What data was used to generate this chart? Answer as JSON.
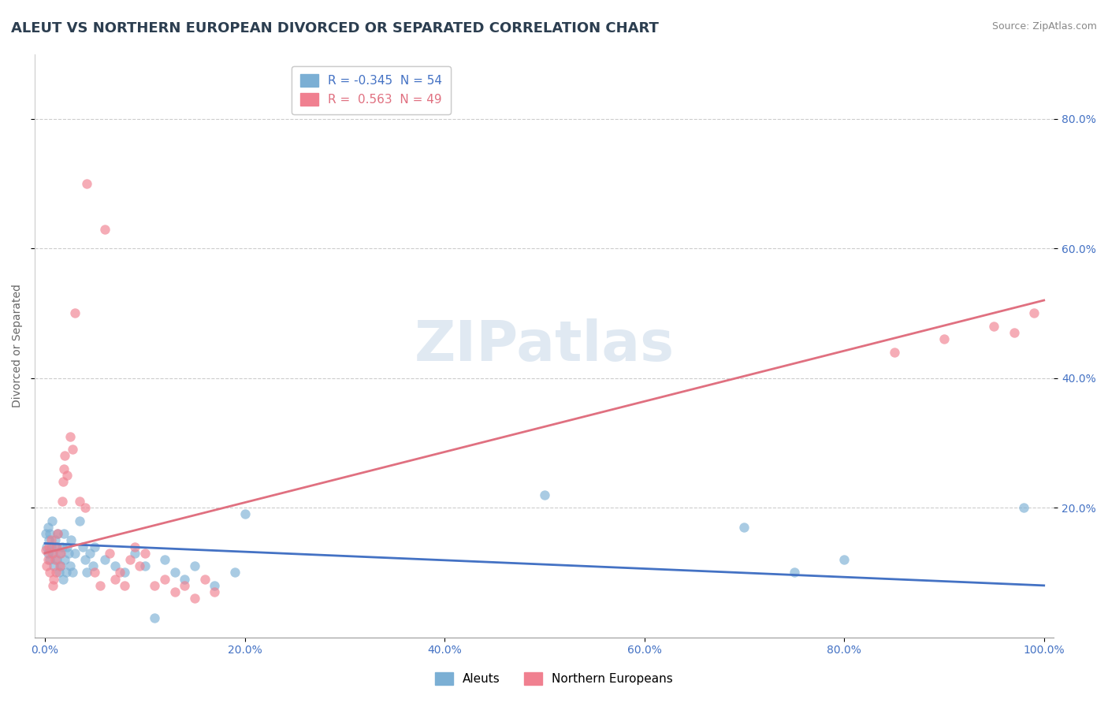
{
  "title": "ALEUT VS NORTHERN EUROPEAN DIVORCED OR SEPARATED CORRELATION CHART",
  "source": "Source: ZipAtlas.com",
  "ylabel": "Divorced or Separated",
  "watermark": "ZIPatlas",
  "legend_entries": [
    {
      "label": "R = -0.345  N = 54",
      "color": "#aac4e0"
    },
    {
      "label": "R =  0.563  N = 49",
      "color": "#f0a0b0"
    }
  ],
  "legend_bottom": [
    {
      "label": "Aleuts",
      "color": "#aac4e0"
    },
    {
      "label": "Northern Europeans",
      "color": "#f0a0b0"
    }
  ],
  "aleuts_scatter": [
    [
      0.001,
      0.16
    ],
    [
      0.002,
      0.14
    ],
    [
      0.003,
      0.17
    ],
    [
      0.003,
      0.13
    ],
    [
      0.004,
      0.15
    ],
    [
      0.005,
      0.16
    ],
    [
      0.005,
      0.12
    ],
    [
      0.006,
      0.14
    ],
    [
      0.007,
      0.18
    ],
    [
      0.008,
      0.13
    ],
    [
      0.009,
      0.11
    ],
    [
      0.01,
      0.15
    ],
    [
      0.011,
      0.14
    ],
    [
      0.012,
      0.12
    ],
    [
      0.013,
      0.16
    ],
    [
      0.014,
      0.1
    ],
    [
      0.015,
      0.13
    ],
    [
      0.016,
      0.11
    ],
    [
      0.017,
      0.14
    ],
    [
      0.018,
      0.09
    ],
    [
      0.019,
      0.16
    ],
    [
      0.02,
      0.12
    ],
    [
      0.021,
      0.1
    ],
    [
      0.022,
      0.14
    ],
    [
      0.024,
      0.13
    ],
    [
      0.025,
      0.11
    ],
    [
      0.026,
      0.15
    ],
    [
      0.028,
      0.1
    ],
    [
      0.03,
      0.13
    ],
    [
      0.035,
      0.18
    ],
    [
      0.038,
      0.14
    ],
    [
      0.04,
      0.12
    ],
    [
      0.042,
      0.1
    ],
    [
      0.045,
      0.13
    ],
    [
      0.048,
      0.11
    ],
    [
      0.05,
      0.14
    ],
    [
      0.06,
      0.12
    ],
    [
      0.07,
      0.11
    ],
    [
      0.08,
      0.1
    ],
    [
      0.09,
      0.13
    ],
    [
      0.1,
      0.11
    ],
    [
      0.11,
      0.03
    ],
    [
      0.12,
      0.12
    ],
    [
      0.13,
      0.1
    ],
    [
      0.14,
      0.09
    ],
    [
      0.15,
      0.11
    ],
    [
      0.17,
      0.08
    ],
    [
      0.19,
      0.1
    ],
    [
      0.2,
      0.19
    ],
    [
      0.5,
      0.22
    ],
    [
      0.7,
      0.17
    ],
    [
      0.75,
      0.1
    ],
    [
      0.8,
      0.12
    ],
    [
      0.98,
      0.2
    ]
  ],
  "northern_europeans_scatter": [
    [
      0.001,
      0.135
    ],
    [
      0.002,
      0.11
    ],
    [
      0.003,
      0.12
    ],
    [
      0.004,
      0.14
    ],
    [
      0.005,
      0.1
    ],
    [
      0.006,
      0.15
    ],
    [
      0.007,
      0.13
    ],
    [
      0.008,
      0.08
    ],
    [
      0.009,
      0.09
    ],
    [
      0.01,
      0.12
    ],
    [
      0.011,
      0.1
    ],
    [
      0.012,
      0.14
    ],
    [
      0.013,
      0.16
    ],
    [
      0.015,
      0.11
    ],
    [
      0.016,
      0.13
    ],
    [
      0.017,
      0.21
    ],
    [
      0.018,
      0.24
    ],
    [
      0.019,
      0.26
    ],
    [
      0.02,
      0.28
    ],
    [
      0.022,
      0.25
    ],
    [
      0.025,
      0.31
    ],
    [
      0.028,
      0.29
    ],
    [
      0.03,
      0.5
    ],
    [
      0.035,
      0.21
    ],
    [
      0.04,
      0.2
    ],
    [
      0.042,
      0.7
    ],
    [
      0.05,
      0.1
    ],
    [
      0.055,
      0.08
    ],
    [
      0.06,
      0.63
    ],
    [
      0.065,
      0.13
    ],
    [
      0.07,
      0.09
    ],
    [
      0.075,
      0.1
    ],
    [
      0.08,
      0.08
    ],
    [
      0.085,
      0.12
    ],
    [
      0.09,
      0.14
    ],
    [
      0.095,
      0.11
    ],
    [
      0.1,
      0.13
    ],
    [
      0.11,
      0.08
    ],
    [
      0.12,
      0.09
    ],
    [
      0.13,
      0.07
    ],
    [
      0.14,
      0.08
    ],
    [
      0.15,
      0.06
    ],
    [
      0.16,
      0.09
    ],
    [
      0.17,
      0.07
    ],
    [
      0.85,
      0.44
    ],
    [
      0.9,
      0.46
    ],
    [
      0.95,
      0.48
    ],
    [
      0.97,
      0.47
    ],
    [
      0.99,
      0.5
    ]
  ],
  "aleut_line": {
    "x0": 0.0,
    "y0": 0.145,
    "x1": 1.0,
    "y1": 0.08
  },
  "northern_line": {
    "x0": 0.0,
    "y0": 0.13,
    "x1": 1.0,
    "y1": 0.52
  },
  "xlim": [
    -0.01,
    1.01
  ],
  "ylim": [
    0.0,
    0.9
  ],
  "xticks": [
    0.0,
    0.2,
    0.4,
    0.6,
    0.8,
    1.0
  ],
  "yticks": [
    0.2,
    0.4,
    0.6,
    0.8
  ],
  "xticklabels": [
    "0.0%",
    "20.0%",
    "40.0%",
    "60.0%",
    "80.0%",
    "100.0%"
  ],
  "yticklabels_right": [
    "20.0%",
    "40.0%",
    "60.0%",
    "80.0%"
  ],
  "aleut_color": "#7bafd4",
  "northern_color": "#f08090",
  "aleut_line_color": "#4472c4",
  "northern_line_color": "#e07080",
  "grid_color": "#cccccc",
  "bg_color": "#ffffff",
  "title_color": "#2c3e50",
  "tick_color": "#4472c4",
  "ylabel_color": "#666666",
  "source_color": "#888888",
  "title_fontsize": 13,
  "axis_label_fontsize": 10,
  "tick_fontsize": 10,
  "source_fontsize": 9,
  "legend_fontsize": 11,
  "watermark_fontsize": 52,
  "scatter_size": 80,
  "scatter_alpha": 0.65,
  "line_width": 2.0
}
